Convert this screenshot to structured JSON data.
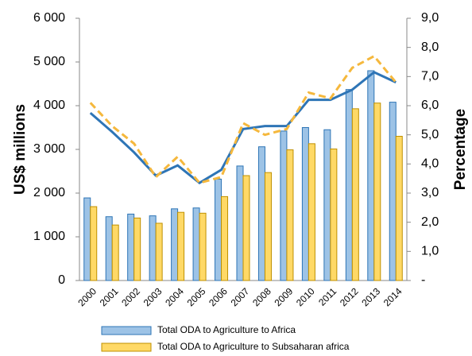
{
  "chart_data": {
    "type": "bar-line",
    "categories": [
      "2000",
      "2001",
      "2002",
      "2003",
      "2004",
      "2005",
      "2006",
      "2007",
      "2008",
      "2009",
      "2010",
      "2011",
      "2012",
      "2013",
      "2014"
    ],
    "y_label": "US$ millions",
    "y2_label": "Percentage",
    "ylim": [
      0,
      6000
    ],
    "yticks": [
      0,
      {
        "value": 1000,
        "label": "1 000"
      },
      {
        "value": 2000,
        "label": "2 000"
      },
      {
        "value": 3000,
        "label": "3 000"
      },
      {
        "value": 4000,
        "label": "4 000"
      },
      {
        "value": 5000,
        "label": "5 000"
      },
      {
        "value": 6000,
        "label": "6 000"
      }
    ],
    "y2lim": [
      0,
      9
    ],
    "y2ticks": [
      {
        "value": 0,
        "label": "-"
      },
      {
        "value": 1,
        "label": "1,0"
      },
      {
        "value": 2,
        "label": "2,0"
      },
      {
        "value": 3,
        "label": "3,0"
      },
      {
        "value": 4,
        "label": "4,0"
      },
      {
        "value": 5,
        "label": "5,0"
      },
      {
        "value": 6,
        "label": "6,0"
      },
      {
        "value": 7,
        "label": "7,0"
      },
      {
        "value": 8,
        "label": "8,0"
      },
      {
        "value": 9,
        "label": "9,0"
      }
    ],
    "legend": "bottom",
    "series": [
      {
        "name": "Total ODA to Agriculture to Africa",
        "type": "bar",
        "color": "#9dc3e6",
        "edge": "#2e75b6",
        "values": [
          1890,
          1460,
          1520,
          1480,
          1640,
          1660,
          2320,
          2620,
          3060,
          3420,
          3500,
          3450,
          4370,
          4800,
          4080
        ]
      },
      {
        "name": "Total ODA to Agriculture to Subsaharan africa",
        "type": "bar",
        "color": "#ffd966",
        "edge": "#bf9000",
        "values": [
          1690,
          1270,
          1430,
          1310,
          1560,
          1540,
          1920,
          2400,
          2470,
          2990,
          3130,
          3010,
          3930,
          4060,
          3300
        ]
      },
      {
        "type": "line",
        "axis": "y2",
        "color": "#2e75b6",
        "dashed": false,
        "values": [
          5.75,
          5.1,
          4.4,
          3.6,
          3.95,
          3.35,
          3.8,
          5.2,
          5.3,
          5.3,
          6.2,
          6.2,
          6.55,
          7.15,
          6.8
        ]
      },
      {
        "type": "line",
        "axis": "y2",
        "color": "#f5b83d",
        "dashed": true,
        "values": [
          6.1,
          5.3,
          4.7,
          3.55,
          4.25,
          3.35,
          3.55,
          5.4,
          5.0,
          5.2,
          6.45,
          6.25,
          7.3,
          7.7,
          6.8
        ]
      }
    ]
  }
}
